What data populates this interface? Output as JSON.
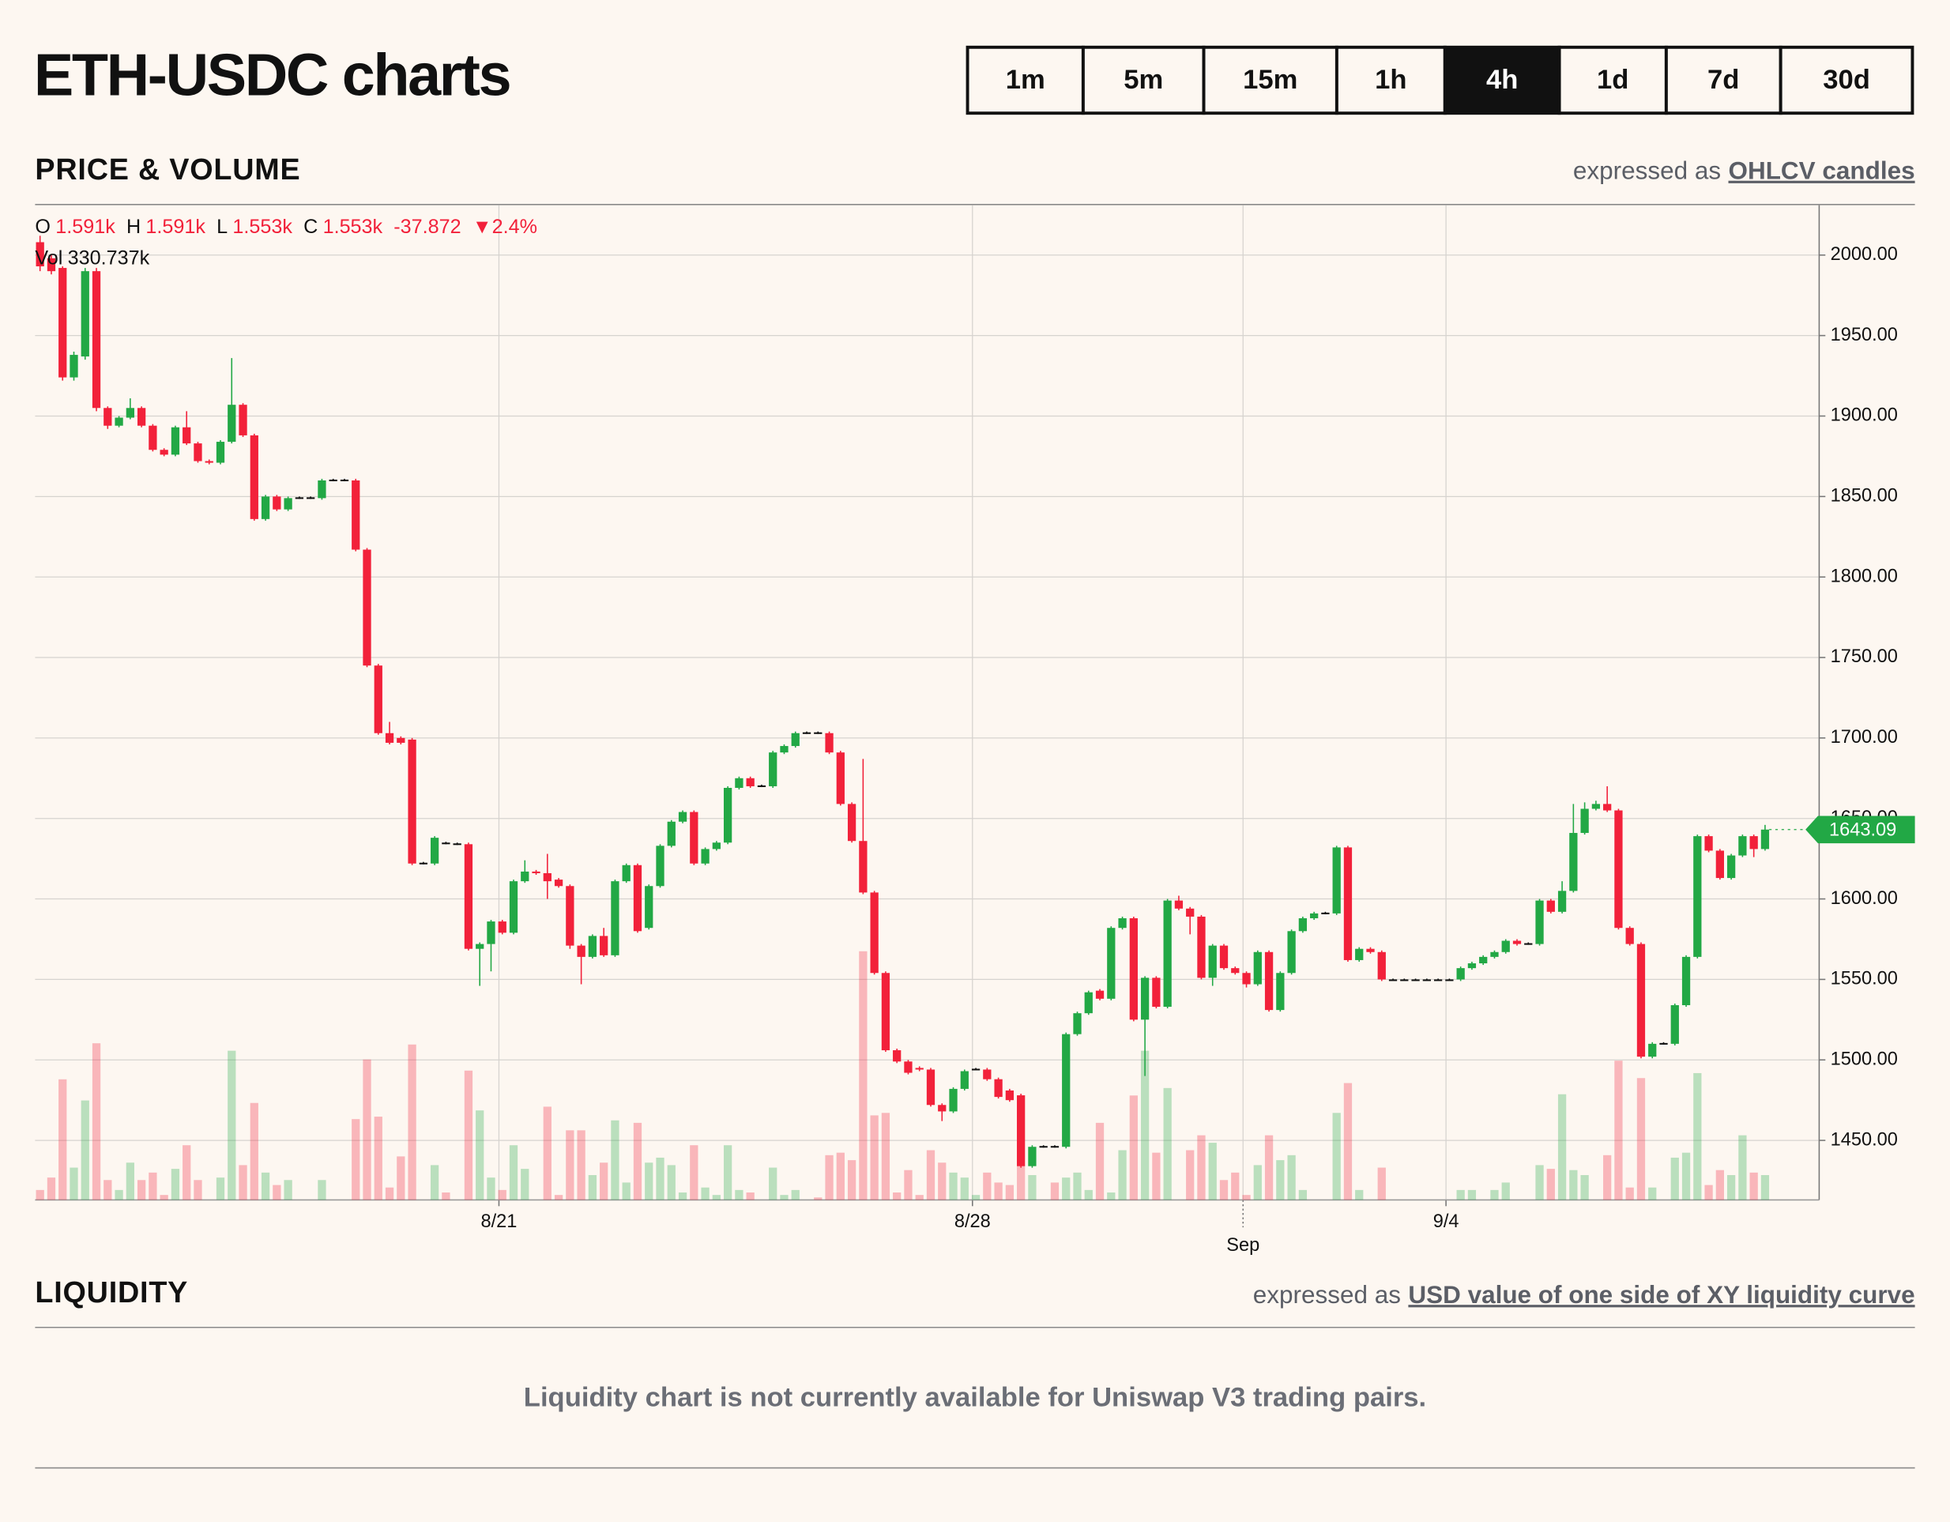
{
  "header": {
    "title": "ETH-USDC charts",
    "timeframes": [
      {
        "label": "1m"
      },
      {
        "label": "5m"
      },
      {
        "label": "15m"
      },
      {
        "label": "1h"
      },
      {
        "label": "4h",
        "selected": true
      },
      {
        "label": "1d"
      },
      {
        "label": "7d"
      },
      {
        "label": "30d"
      }
    ]
  },
  "price_section": {
    "heading": "PRICE & VOLUME",
    "expressed_prefix": "expressed as",
    "expressed_link": "OHLCV candles"
  },
  "readout": {
    "open_label": "O",
    "open": "1.591k",
    "high_label": "H",
    "high": "1.591k",
    "low_label": "L",
    "low": "1.553k",
    "close_label": "C",
    "close": "1.553k",
    "change": "-37.872",
    "change_pct": "▼2.4%",
    "volume_label": "Vol",
    "volume": "330.737k"
  },
  "chart_data": {
    "type": "candlestick",
    "up_color": "#22a845",
    "down_color": "#f2213a",
    "grid": true,
    "ylim": [
      1413,
      2031
    ],
    "yticks": [
      {
        "value": 1450,
        "label": "1450.00"
      },
      {
        "value": 1500,
        "label": "1500.00"
      },
      {
        "value": 1550,
        "label": "1550.00"
      },
      {
        "value": 1600,
        "label": "1600.00"
      },
      {
        "value": 1650,
        "label": "1650.00"
      },
      {
        "value": 1700,
        "label": "1700.00"
      },
      {
        "value": 1750,
        "label": "1750.00"
      },
      {
        "value": 1800,
        "label": "1800.00"
      },
      {
        "value": 1850,
        "label": "1850.00"
      },
      {
        "value": 1900,
        "label": "1900.00"
      },
      {
        "value": 1950,
        "label": "1950.00"
      },
      {
        "value": 2000,
        "label": "2000.00"
      }
    ],
    "xlim": [
      -0.44,
      157.8
    ],
    "xticks": [
      {
        "value": 40.7,
        "label": "8/21"
      },
      {
        "value": 82.7,
        "label": "8/28"
      },
      {
        "value": 106.7,
        "label": "Sep"
      },
      {
        "value": 124.7,
        "label": "9/4"
      }
    ],
    "vlim": [
      0,
      2400000
    ],
    "open": [
      2008,
      1998,
      1992,
      1924,
      1937,
      1990,
      1905,
      1894,
      1899,
      1905,
      1894,
      1879,
      1876,
      1893,
      1883,
      1872,
      1871,
      1884,
      1907,
      1888,
      1836,
      1850,
      1842,
      1849,
      1849.5,
      1849,
      1860,
      1860.5,
      1860,
      1817,
      1745,
      1703,
      1700,
      1699,
      1622,
      1622,
      1635,
      1634.5,
      1634,
      1569,
      1572,
      1586,
      1579,
      1611,
      1617,
      1616,
      1612,
      1608,
      1571,
      1564,
      1577,
      1565,
      1611,
      1621,
      1582,
      1608,
      1633,
      1648,
      1654,
      1622,
      1631,
      1635,
      1669,
      1675,
      1670,
      1670,
      1691,
      1695,
      1703,
      1703.5,
      1703,
      1691,
      1659,
      1636,
      1604,
      1554,
      1506,
      1499,
      1495,
      1494,
      1472,
      1468,
      1482,
      1494,
      1494,
      1488,
      1481,
      1478,
      1434,
      1446,
      1446.5,
      1446,
      1516,
      1529,
      1543,
      1538,
      1582,
      1588,
      1525,
      1551,
      1533,
      1599,
      1594,
      1589,
      1551,
      1571,
      1557,
      1554,
      1547,
      1567,
      1531,
      1554,
      1580,
      1588,
      1591,
      1591,
      1632,
      1562,
      1569,
      1567,
      1550,
      1550,
      1550,
      1550,
      1550,
      1550,
      1550,
      1557,
      1560,
      1564,
      1567,
      1574,
      1572,
      1572,
      1599,
      1592,
      1605,
      1641,
      1656,
      1659,
      1655,
      1582,
      1572,
      1502,
      1510,
      1510,
      1534,
      1564,
      1639,
      1630,
      1613,
      1627,
      1639,
      1631
    ],
    "high": [
      2012,
      2000,
      1993,
      1940,
      1992,
      1992,
      1906,
      1900,
      1911,
      1906,
      1895,
      1880,
      1894,
      1903,
      1884,
      1873,
      1885,
      1936,
      1908,
      1889,
      1851,
      1851,
      1850,
      1850,
      1850,
      1861,
      1861,
      1861,
      1861,
      1818,
      1746,
      1710,
      1701,
      1700,
      1623,
      1639,
      1635.5,
      1635,
      1635,
      1573,
      1587,
      1587,
      1612,
      1624,
      1618,
      1628,
      1613,
      1609,
      1572,
      1578,
      1582,
      1612,
      1622,
      1622,
      1609,
      1634,
      1649,
      1655,
      1655,
      1632,
      1636,
      1670,
      1676,
      1676,
      1671,
      1692,
      1696,
      1704,
      1704,
      1704,
      1704,
      1692,
      1660,
      1687,
      1605,
      1555,
      1507,
      1500,
      1496,
      1495,
      1473,
      1483,
      1494,
      1495,
      1495,
      1489,
      1482,
      1479,
      1447,
      1447,
      1447,
      1517,
      1530,
      1543,
      1544,
      1583,
      1589,
      1589,
      1552,
      1552,
      1600,
      1602,
      1595,
      1590,
      1572,
      1572,
      1558,
      1555,
      1568,
      1568,
      1555,
      1581,
      1589,
      1592,
      1592,
      1633,
      1633,
      1570,
      1570,
      1568,
      1550.5,
      1550.5,
      1550.5,
      1550.5,
      1550.5,
      1550.5,
      1558,
      1561,
      1565,
      1568,
      1575,
      1575,
      1573,
      1600,
      1600,
      1611,
      1659,
      1660,
      1661,
      1670,
      1656,
      1583,
      1573,
      1511,
      1511,
      1535,
      1565,
      1640,
      1640,
      1631,
      1628,
      1640,
      1640,
      1646
    ],
    "low": [
      1990,
      1988,
      1922,
      1922,
      1935,
      1903,
      1892,
      1893,
      1898,
      1893,
      1878,
      1875,
      1875,
      1882,
      1871,
      1870,
      1870,
      1883,
      1887,
      1835,
      1835,
      1841,
      1841,
      1848.5,
      1848.5,
      1848,
      1859.5,
      1859.5,
      1816,
      1744,
      1702,
      1696,
      1696,
      1621,
      1621.5,
      1621,
      1634,
      1633.5,
      1568,
      1546,
      1555,
      1578,
      1578,
      1610,
      1615,
      1600,
      1607,
      1569,
      1547,
      1563,
      1564,
      1564,
      1610,
      1579,
      1581,
      1607,
      1632,
      1647,
      1621,
      1621,
      1630,
      1634,
      1668,
      1669,
      1669.5,
      1669,
      1690,
      1694,
      1702.5,
      1702.5,
      1690,
      1658,
      1635,
      1603,
      1553,
      1505,
      1498,
      1491,
      1493,
      1471,
      1462,
      1467,
      1481,
      1493.5,
      1487,
      1476,
      1474,
      1433,
      1433,
      1445.5,
      1445.5,
      1445,
      1515,
      1528,
      1537,
      1537,
      1581,
      1524,
      1490,
      1532,
      1532,
      1593,
      1578,
      1550,
      1546,
      1556,
      1553,
      1545,
      1546,
      1530,
      1530,
      1553,
      1579,
      1587,
      1590.5,
      1590,
      1561,
      1561,
      1566,
      1549,
      1549.5,
      1549.5,
      1549.5,
      1549.5,
      1549.5,
      1549.5,
      1549,
      1556,
      1559,
      1563,
      1566,
      1571,
      1571.5,
      1571,
      1591,
      1591,
      1604,
      1640,
      1655,
      1654,
      1581,
      1571,
      1501,
      1501,
      1509.5,
      1509,
      1533,
      1563,
      1629,
      1612,
      1612,
      1626,
      1626,
      1630
    ],
    "close": [
      1993,
      1990,
      1924,
      1938,
      1990,
      1905,
      1894,
      1899,
      1905,
      1894,
      1879,
      1876,
      1893,
      1883,
      1872,
      1871,
      1884,
      1907,
      1888,
      1836,
      1850,
      1842,
      1849,
      1849.5,
      1849,
      1860,
      1860.5,
      1860,
      1817,
      1745,
      1703,
      1697,
      1697,
      1622,
      1622.5,
      1638,
      1634.5,
      1634,
      1569,
      1572,
      1586,
      1579,
      1611,
      1617,
      1616,
      1611,
      1608,
      1571,
      1564,
      1577,
      1565,
      1611,
      1621,
      1580,
      1608,
      1633,
      1648,
      1654,
      1622,
      1631,
      1635,
      1669,
      1675,
      1670,
      1670.5,
      1691,
      1695,
      1703,
      1703.5,
      1703,
      1691,
      1659,
      1636,
      1604,
      1554,
      1506,
      1499,
      1492,
      1494,
      1472,
      1468,
      1482,
      1493,
      1494.5,
      1488,
      1477,
      1475,
      1434,
      1446,
      1446.5,
      1446,
      1516,
      1529,
      1542,
      1538,
      1582,
      1588,
      1525,
      1551,
      1533,
      1599,
      1594,
      1589,
      1551,
      1571,
      1557,
      1554,
      1547,
      1567,
      1531,
      1554,
      1580,
      1588,
      1591,
      1591.5,
      1632,
      1562,
      1569,
      1567,
      1550,
      1550,
      1550,
      1550,
      1550,
      1550,
      1550,
      1557,
      1560,
      1564,
      1567,
      1574,
      1572,
      1572.5,
      1599,
      1592,
      1605,
      1641,
      1656,
      1659,
      1655,
      1582,
      1572,
      1502,
      1510,
      1510.5,
      1534,
      1564,
      1639,
      1630,
      1613,
      1627,
      1639,
      1631,
      1643.09
    ],
    "volume": [
      24000,
      54000,
      291000,
      78000,
      240000,
      378000,
      48000,
      24000,
      90000,
      48000,
      66000,
      12000,
      75000,
      132000,
      48000,
      0,
      54000,
      360000,
      84000,
      234000,
      66000,
      36000,
      48000,
      0,
      0,
      48000,
      0,
      0,
      195000,
      339000,
      201000,
      30000,
      105000,
      375000,
      0,
      84000,
      18000,
      0,
      312000,
      216000,
      54000,
      24000,
      132000,
      75000,
      0,
      225000,
      12000,
      168000,
      168000,
      60000,
      90000,
      192000,
      42000,
      186000,
      90000,
      102000,
      84000,
      18000,
      132000,
      30000,
      12000,
      132000,
      24000,
      18000,
      0,
      78000,
      12000,
      24000,
      0,
      6000,
      108000,
      114000,
      96000,
      600000,
      204000,
      210000,
      18000,
      72000,
      12000,
      120000,
      90000,
      66000,
      54000,
      12000,
      66000,
      42000,
      36000,
      84000,
      60000,
      0,
      42000,
      54000,
      66000,
      24000,
      186000,
      18000,
      120000,
      252000,
      360000,
      114000,
      270000,
      0,
      120000,
      156000,
      138000,
      48000,
      66000,
      12000,
      84000,
      156000,
      96000,
      108000,
      24000,
      0,
      0,
      210000,
      282000,
      24000,
      0,
      78000,
      0,
      0,
      0,
      0,
      0,
      0,
      24000,
      24000,
      0,
      24000,
      42000,
      0,
      0,
      84000,
      75000,
      255000,
      72000,
      60000,
      0,
      108000,
      336000,
      30000,
      294000,
      30000,
      0,
      102000,
      114000,
      306000,
      36000,
      72000,
      60000,
      156000,
      66000,
      60000
    ]
  },
  "liquidity_section": {
    "heading": "LIQUIDITY",
    "expressed_prefix": "expressed as",
    "expressed_link": "USD value of one side of XY liquidity curve",
    "message": "Liquidity chart is not currently available for Uniswap V3 trading pairs."
  }
}
